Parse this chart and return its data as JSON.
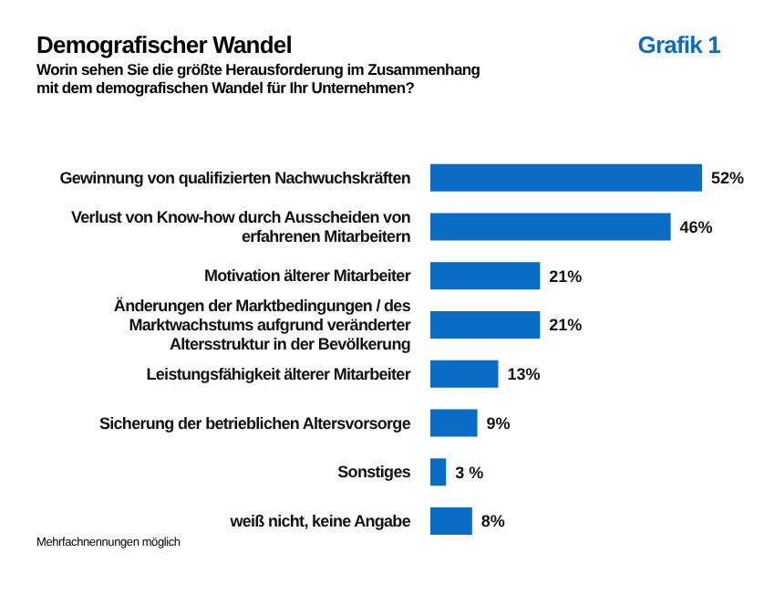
{
  "chart_data": {
    "type": "bar",
    "orientation": "horizontal",
    "title": "Demografischer Wandel",
    "subtitle": "Worin sehen Sie die größte Herausforderung im Zusammenhang mit dem demografischen Wandel für Ihr Unternehmen?",
    "categories": [
      "Gewinnung von qualifizierten Nachwuchskräften",
      "Verlust von Know-how durch Ausscheiden von erfahrenen Mitarbeitern",
      "Motivation älterer Mitarbeiter",
      "Änderungen der Marktbedingungen / des Marktwachstums aufgrund veränderter Altersstruktur in der Bevölkerung",
      "Leistungsfähigkeit älterer Mitarbeiter",
      "Sicherung der betrieblichen Altersvorsorge",
      "Sonstiges",
      "weiß nicht, keine Angabe"
    ],
    "values": [
      52,
      46,
      21,
      21,
      13,
      9,
      3,
      8
    ],
    "value_labels": [
      "52%",
      "46%",
      "21%",
      "21%",
      "13%",
      "9%",
      "3 %",
      "8%"
    ],
    "color": "#0a6cc4",
    "annotations": [
      "Grafik 1",
      "Mehrfachnennungen möglich"
    ]
  }
}
